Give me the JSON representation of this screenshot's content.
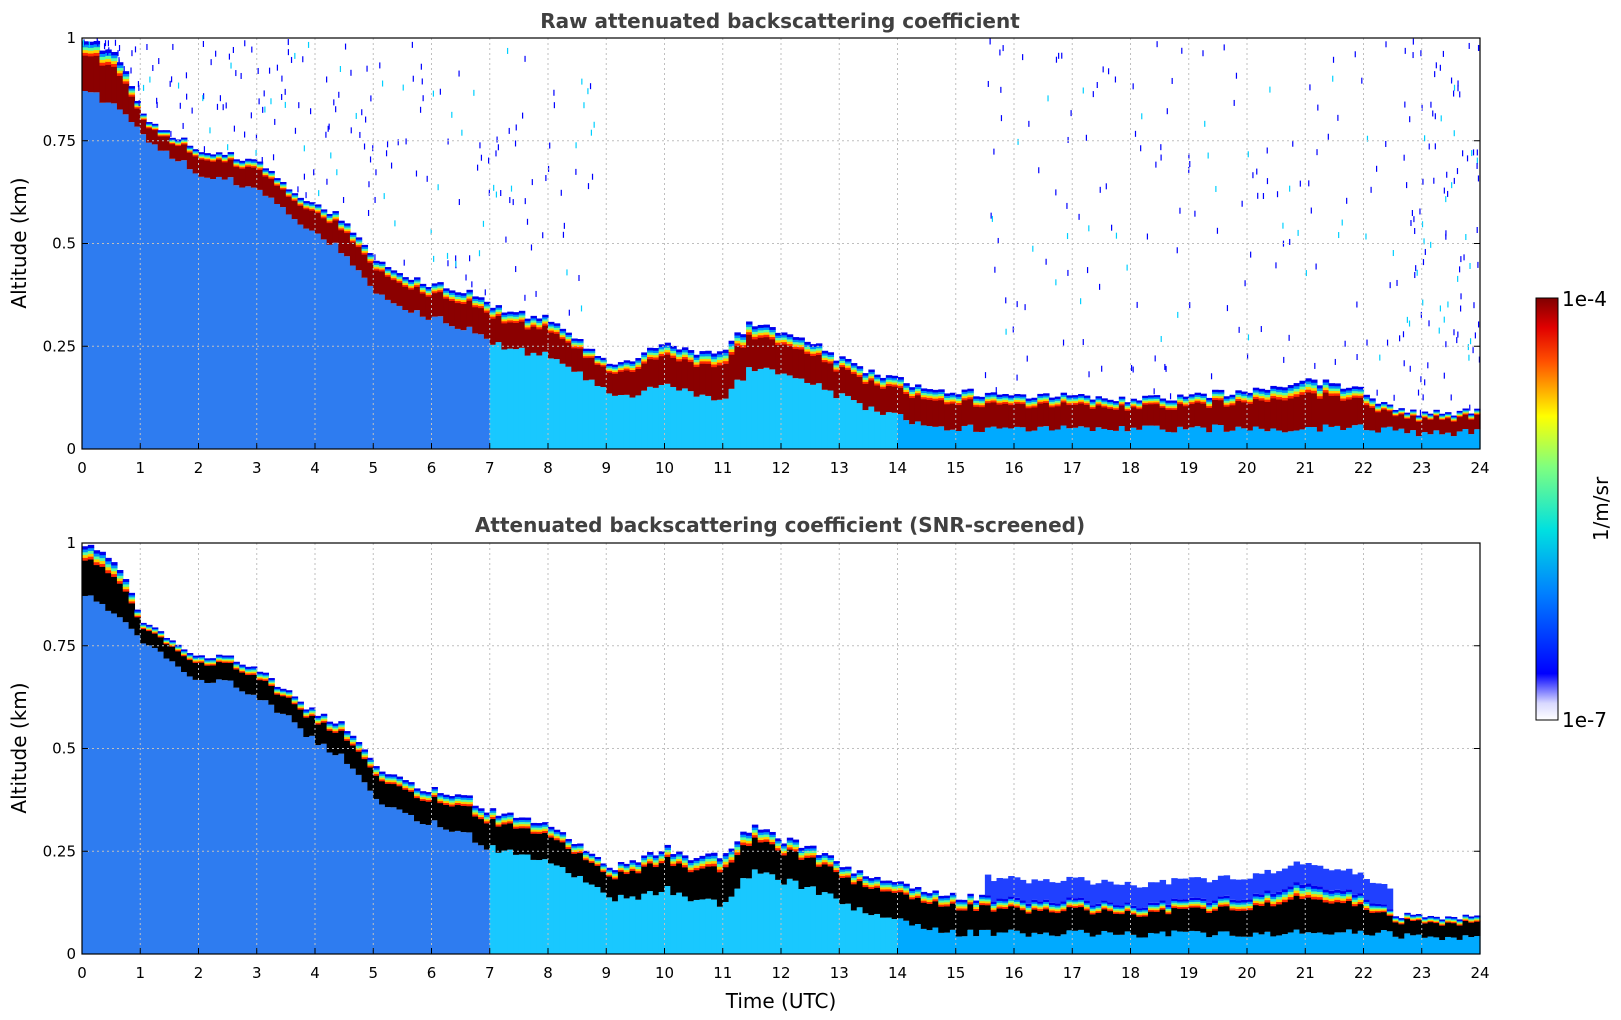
{
  "colorbar": {
    "max_label": "1e-4",
    "min_label": "1e-7",
    "unit_label": "1/m/sr",
    "colormap": "jet",
    "scale": "log",
    "range": [
      1e-07,
      0.0001
    ]
  },
  "chart_data": [
    {
      "type": "heatmap",
      "title": "Raw attenuated backscattering coefficient",
      "xlabel": "",
      "ylabel": "Altitude (km)",
      "xlim": [
        0,
        24
      ],
      "ylim": [
        0,
        1
      ],
      "x_ticks": [
        "0",
        "1",
        "2",
        "3",
        "4",
        "5",
        "6",
        "7",
        "8",
        "9",
        "10",
        "11",
        "12",
        "13",
        "14",
        "15",
        "16",
        "17",
        "18",
        "19",
        "20",
        "21",
        "22",
        "23",
        "24"
      ],
      "y_ticks": [
        "0",
        "0.25",
        "0.5",
        "0.75",
        "1"
      ],
      "grid": true,
      "screened": false,
      "cloud_base_km": {
        "x": [
          0,
          0.5,
          0.8,
          1,
          1.5,
          2,
          2.5,
          3,
          3.5,
          4,
          4.5,
          5,
          5.5,
          6,
          6.5,
          7,
          7.5,
          8,
          8.5,
          9,
          9.5,
          10,
          10.5,
          11,
          11.5,
          12,
          12.5,
          13,
          13.5,
          14,
          14.5,
          15,
          16,
          17,
          18,
          19,
          20,
          21,
          22,
          22.5,
          23,
          24
        ],
        "y": [
          0.88,
          0.84,
          0.8,
          0.77,
          0.72,
          0.67,
          0.66,
          0.63,
          0.58,
          0.52,
          0.48,
          0.38,
          0.34,
          0.32,
          0.3,
          0.26,
          0.24,
          0.23,
          0.19,
          0.14,
          0.13,
          0.16,
          0.13,
          0.12,
          0.2,
          0.18,
          0.16,
          0.13,
          0.1,
          0.08,
          0.06,
          0.05,
          0.05,
          0.05,
          0.05,
          0.05,
          0.05,
          0.05,
          0.05,
          0.05,
          0.04,
          0.04
        ]
      },
      "cloud_top_km": {
        "x": [
          0,
          0.5,
          0.8,
          1,
          1.5,
          2,
          2.5,
          3,
          3.5,
          4,
          4.5,
          5,
          5.5,
          6,
          6.5,
          7,
          7.5,
          8,
          8.5,
          9,
          9.5,
          10,
          10.5,
          11,
          11.5,
          12,
          12.5,
          13,
          13.5,
          14,
          14.5,
          15,
          16,
          17,
          18,
          19,
          20,
          21,
          22,
          22.5,
          23,
          24
        ],
        "y": [
          1.0,
          0.97,
          0.9,
          0.82,
          0.77,
          0.73,
          0.72,
          0.7,
          0.64,
          0.59,
          0.56,
          0.46,
          0.42,
          0.4,
          0.39,
          0.35,
          0.33,
          0.32,
          0.27,
          0.21,
          0.22,
          0.26,
          0.23,
          0.24,
          0.31,
          0.28,
          0.26,
          0.22,
          0.19,
          0.17,
          0.15,
          0.14,
          0.13,
          0.13,
          0.12,
          0.13,
          0.14,
          0.17,
          0.14,
          0.1,
          0.09,
          0.09
        ]
      },
      "clear_sky_noise_hours": [
        22.6,
        24
      ]
    },
    {
      "type": "heatmap",
      "title": "Attenuated backscattering coefficient (SNR-screened)",
      "xlabel": "Time (UTC)",
      "ylabel": "Altitude (km)",
      "xlim": [
        0,
        24
      ],
      "ylim": [
        0,
        1
      ],
      "x_ticks": [
        "0",
        "1",
        "2",
        "3",
        "4",
        "5",
        "6",
        "7",
        "8",
        "9",
        "10",
        "11",
        "12",
        "13",
        "14",
        "15",
        "16",
        "17",
        "18",
        "19",
        "20",
        "21",
        "22",
        "23",
        "24"
      ],
      "y_ticks": [
        "0",
        "0.25",
        "0.5",
        "0.75",
        "1"
      ],
      "grid": true,
      "screened": true,
      "saturated_color": "#000000"
    }
  ]
}
